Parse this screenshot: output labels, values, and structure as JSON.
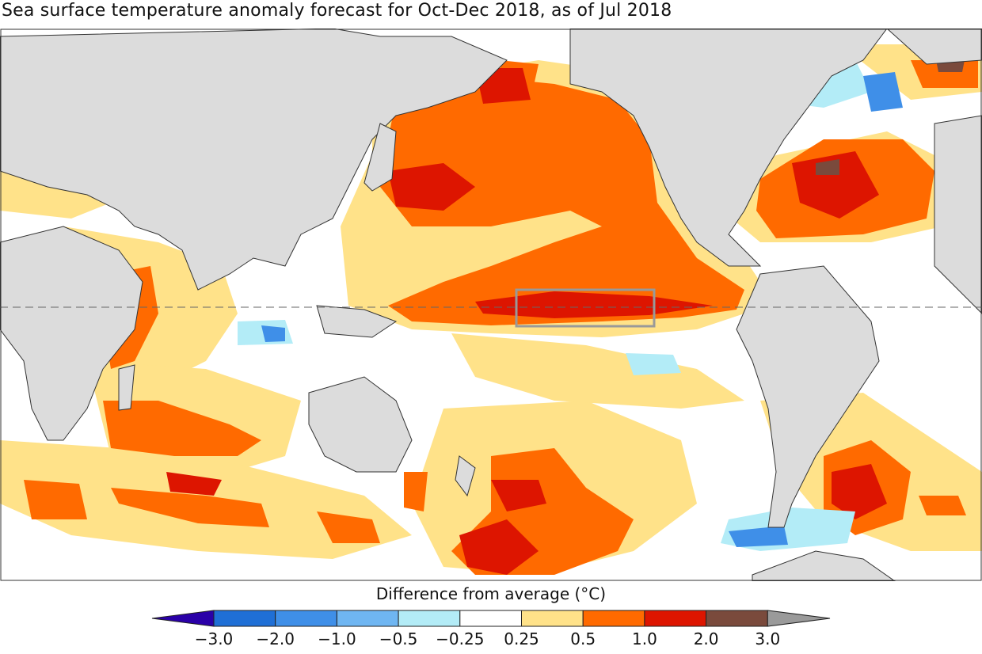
{
  "title": "Sea surface temperature anomaly forecast for Oct-Dec 2018, as of Jul 2018",
  "colorbar": {
    "label": "Difference from average (°C)",
    "ticks": [
      "−3.0",
      "−2.0",
      "−1.0",
      "−0.5",
      "−0.25",
      "0.25",
      "0.5",
      "1.0",
      "2.0",
      "3.0"
    ],
    "colors": [
      "#2a00a8",
      "#1f6fd6",
      "#3f8fe8",
      "#6fb6f2",
      "#b3ecf7",
      "#ffffff",
      "#ffe289",
      "#ff6a00",
      "#dd1500",
      "#7a4a3c",
      "#9a9a9a"
    ]
  },
  "map": {
    "land_color": "#dcdcdc",
    "ocean_color": "#ffffff",
    "equator_style": "dashed",
    "highlight_region": "Nino 3.4"
  }
}
